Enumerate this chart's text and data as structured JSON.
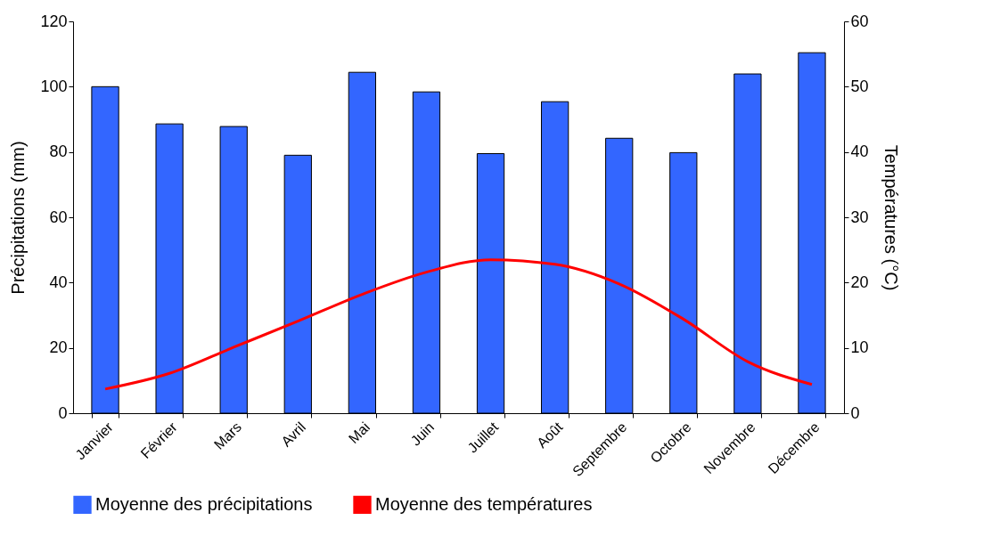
{
  "chart_data": {
    "type": "bar",
    "ylabel": "Précipitations (mm)",
    "y2label": "Températures (°C)",
    "categories": [
      "Janvier",
      "Février",
      "Mars",
      "Avril",
      "Mai",
      "Juin",
      "Juillet",
      "Août",
      "Septembre",
      "Octobre",
      "Novembre",
      "Décembre"
    ],
    "series": [
      {
        "name": "Moyenne des précipitations",
        "color": "#3366ff",
        "values": [
          100,
          88.6,
          87.8,
          79,
          104.4,
          98.4,
          79.5,
          95.4,
          84.2,
          79.8,
          103.9,
          110.4
        ]
      },
      {
        "name": "Moyenne des températures",
        "type": "line",
        "axis": "y2",
        "color": "#ff0000",
        "values": [
          3.7,
          6.1,
          10.1,
          14.1,
          18.2,
          21.6,
          23.5,
          22.8,
          19.8,
          14.4,
          7.9,
          4.4
        ]
      }
    ],
    "ylim": [
      0,
      120
    ],
    "yticks": [
      0,
      20,
      40,
      60,
      80,
      100,
      120
    ],
    "y2lim": [
      0,
      60
    ],
    "y2ticks": [
      0,
      10,
      20,
      30,
      40,
      50,
      60
    ],
    "grid": false,
    "legend": "bottom",
    "marker": "none",
    "line_style": "solid"
  }
}
